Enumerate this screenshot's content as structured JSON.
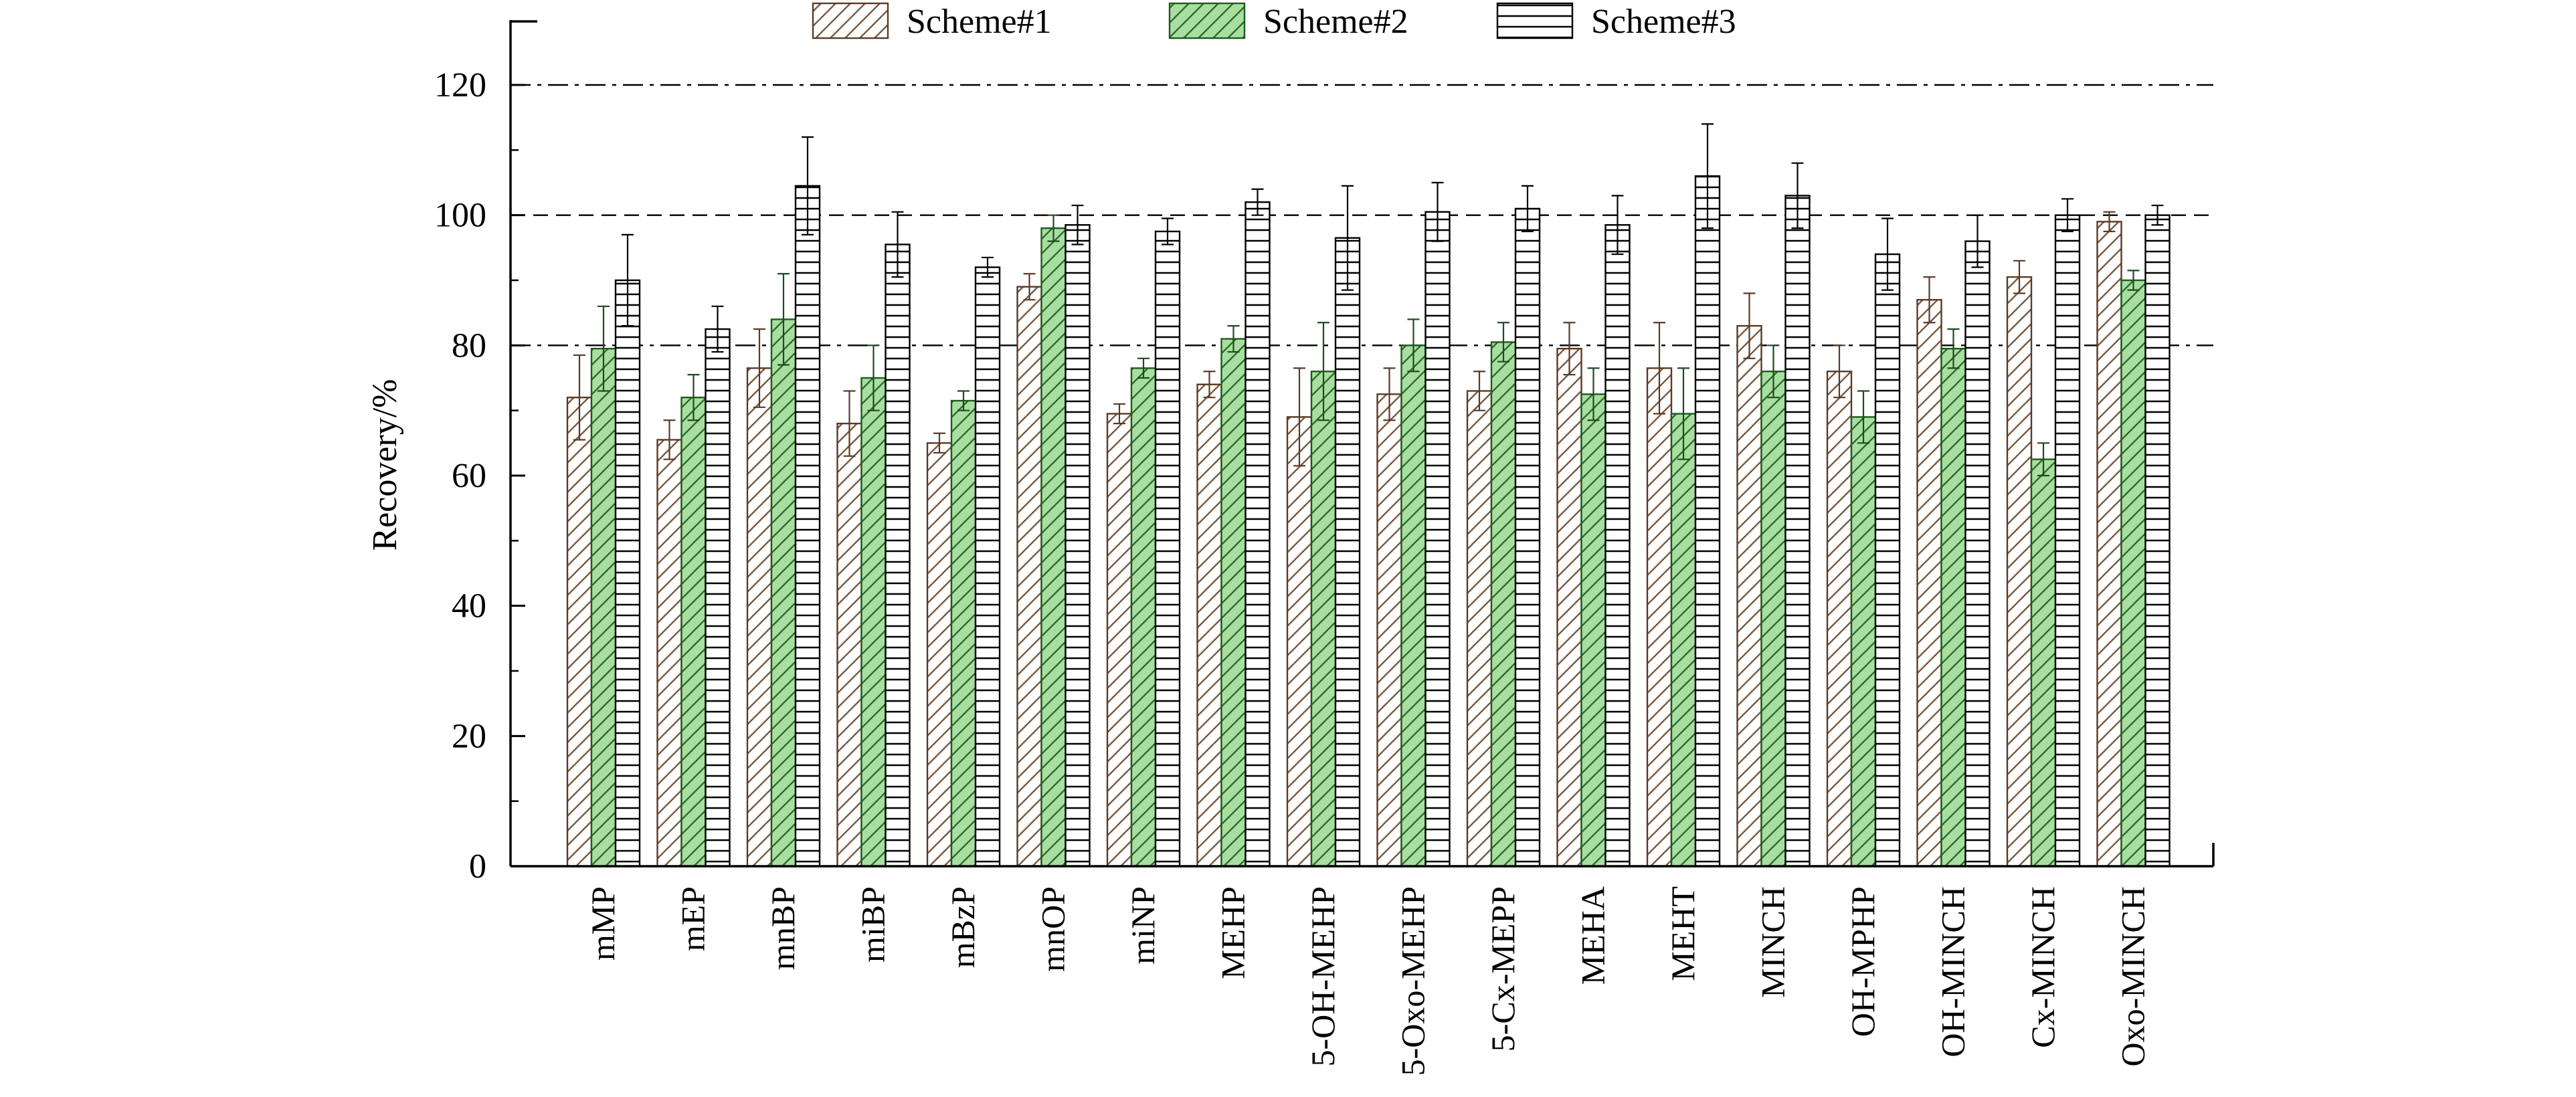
{
  "chart_data": {
    "type": "bar",
    "title": "",
    "xlabel": "",
    "ylabel": "Recovery/%",
    "ylim": [
      0,
      130
    ],
    "yticks": [
      0,
      20,
      40,
      60,
      80,
      100,
      120
    ],
    "reference_lines": [
      {
        "y": 120,
        "style": "dash-dot"
      },
      {
        "y": 100,
        "style": "dashed"
      },
      {
        "y": 80,
        "style": "dash-dot"
      }
    ],
    "legend_position": "top",
    "error_bars": true,
    "categories": [
      "mMP",
      "mEP",
      "mnBP",
      "miBP",
      "mBzP",
      "mnOP",
      "miNP",
      "MEHP",
      "5-OH-MEHP",
      "5-Oxo-MEHP",
      "5-Cx-MEPP",
      "MEHA",
      "MEHT",
      "MINCH",
      "OH-MPHP",
      "OH-MINCH",
      "Cx-MINCH",
      "Oxo-MINCH"
    ],
    "series": [
      {
        "name": "Scheme#1",
        "pattern": "diagonal",
        "fill": "#ffffff",
        "stroke": "#7a5a40",
        "values": [
          72,
          65.5,
          76.5,
          68,
          65,
          89,
          69.5,
          74,
          69,
          72.5,
          73,
          79.5,
          76.5,
          83,
          76,
          87,
          90.5,
          99
        ],
        "errors": [
          6.5,
          3,
          6,
          5,
          1.5,
          2,
          1.5,
          2,
          7.5,
          4,
          3,
          4,
          7,
          5,
          4,
          3.5,
          2.5,
          1.5
        ]
      },
      {
        "name": "Scheme#2",
        "pattern": "diagonal",
        "fill": "#a8dfa0",
        "stroke": "#2f6b2f",
        "values": [
          79.5,
          72,
          84,
          75,
          71.5,
          98,
          76.5,
          81,
          76,
          80,
          80.5,
          72.5,
          69.5,
          76,
          69,
          79.5,
          62.5,
          90
        ],
        "errors": [
          6.5,
          3.5,
          7,
          5,
          1.5,
          2,
          1.5,
          2,
          7.5,
          4,
          3,
          4,
          7,
          4,
          4,
          3,
          2.5,
          1.5
        ]
      },
      {
        "name": "Scheme#3",
        "pattern": "horizontal",
        "fill": "#ffffff",
        "stroke": "#000000",
        "values": [
          90,
          82.5,
          104.5,
          95.5,
          92,
          98.5,
          97.5,
          102,
          96.5,
          100.5,
          101,
          98.5,
          106,
          103,
          94,
          96,
          100,
          100
        ],
        "errors": [
          7,
          3.5,
          7.5,
          5,
          1.5,
          3,
          2,
          2,
          8,
          4.5,
          3.5,
          4.5,
          8,
          5,
          5.5,
          4,
          2.5,
          1.5
        ]
      }
    ]
  }
}
